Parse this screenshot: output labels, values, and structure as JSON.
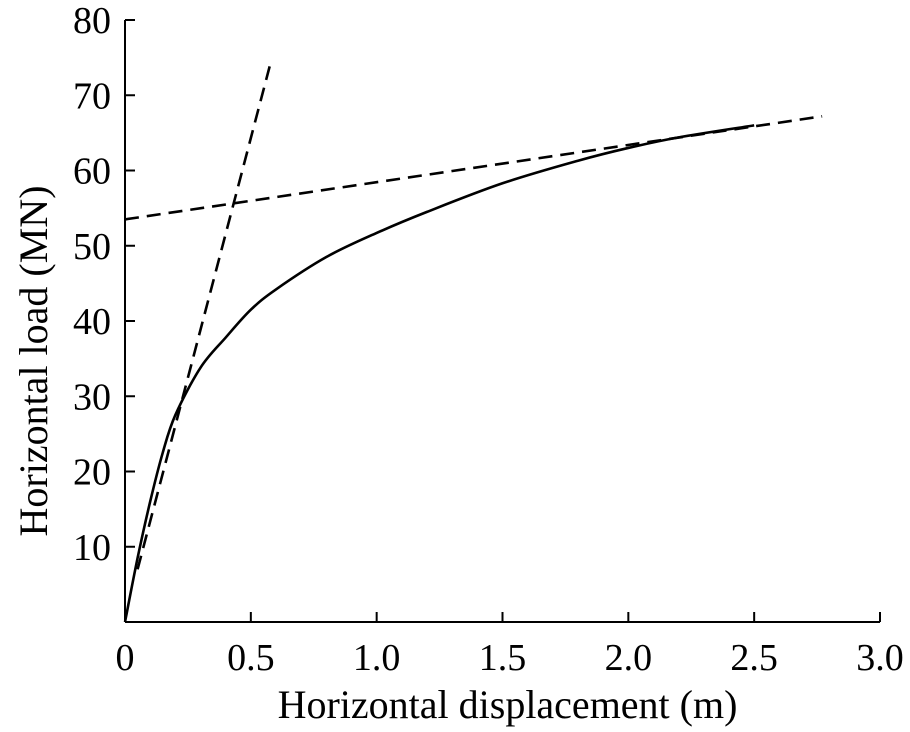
{
  "chart_data": {
    "type": "line",
    "title": "",
    "xlabel": "Horizontal displacement (m)",
    "ylabel": "Horizontal load (MN)",
    "xlim": [
      0,
      3.0
    ],
    "ylim": [
      0,
      80
    ],
    "x_ticks": [
      "0",
      "0.5",
      "1.0",
      "1.5",
      "2.0",
      "2.5",
      "3.0"
    ],
    "x_tick_values": [
      0,
      0.5,
      1.0,
      1.5,
      2.0,
      2.5,
      3.0
    ],
    "y_ticks": [
      "10",
      "20",
      "30",
      "40",
      "50",
      "60",
      "70",
      "80"
    ],
    "y_tick_values": [
      10,
      20,
      30,
      40,
      50,
      60,
      70,
      80
    ],
    "grid": false,
    "legend": "none",
    "series": [
      {
        "style": "solid",
        "color": "#000000",
        "x": [
          0,
          0.05,
          0.1,
          0.15,
          0.2,
          0.3,
          0.4,
          0.5,
          0.6,
          0.8,
          1.0,
          1.2,
          1.5,
          1.8,
          2.0,
          2.2,
          2.5
        ],
        "y": [
          0,
          8.5,
          16,
          22.5,
          27.5,
          33.8,
          37.8,
          41.5,
          44.2,
          48.5,
          51.7,
          54.5,
          58.3,
          61.3,
          63,
          64.4,
          66
        ]
      },
      {
        "style": "dashed",
        "color": "#000000",
        "x": [
          0.05,
          0.58
        ],
        "y": [
          7,
          74.5
        ]
      },
      {
        "style": "dashed",
        "color": "#000000",
        "x": [
          0,
          2.77
        ],
        "y": [
          53.5,
          67.2
        ]
      }
    ]
  }
}
